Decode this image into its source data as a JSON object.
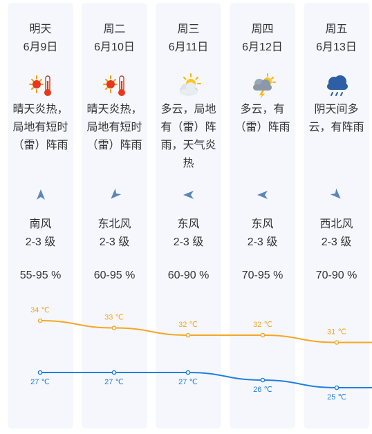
{
  "days": [
    {
      "weekday": "明天",
      "date": "6月9日",
      "icon": "sunny-hot-icon",
      "desc": "晴天炎热，局地有短时（雷）阵雨",
      "wind_dir": "南风",
      "wind_level": "2-3 级",
      "humidity": "55-95 %",
      "arrow_deg": 0
    },
    {
      "weekday": "周二",
      "date": "6月10日",
      "icon": "sunny-hot-icon",
      "desc": "晴天炎热，局地有短时（雷）阵雨",
      "wind_dir": "东北风",
      "wind_level": "2-3 级",
      "humidity": "60-95 %",
      "arrow_deg": 225
    },
    {
      "weekday": "周三",
      "date": "6月11日",
      "icon": "partly-cloudy-icon",
      "desc": "多云，局地有（雷）阵雨，天气炎热",
      "wind_dir": "东风",
      "wind_level": "2-3 级",
      "humidity": "60-90 %",
      "arrow_deg": 270
    },
    {
      "weekday": "周四",
      "date": "6月12日",
      "icon": "thunderstorm-icon",
      "desc": "多云，有（雷）阵雨",
      "wind_dir": "东风",
      "wind_level": "2-3 级",
      "humidity": "70-95 %",
      "arrow_deg": 270
    },
    {
      "weekday": "周五",
      "date": "6月13日",
      "icon": "cloudy-rain-icon",
      "desc": "阴天间多云，有阵雨",
      "wind_dir": "西北风",
      "wind_level": "2-3 级",
      "humidity": "70-90 %",
      "arrow_deg": 135
    }
  ],
  "chart_data": {
    "type": "line",
    "categories": [
      "6月9日",
      "6月10日",
      "6月11日",
      "6月12日",
      "6月13日"
    ],
    "series": [
      {
        "values": [
          34,
          33,
          32,
          32,
          31
        ],
        "labels": [
          "34 ℃",
          "33 ℃",
          "32 ℃",
          "32 ℃",
          "31 ℃"
        ],
        "color": "#f5a623"
      },
      {
        "values": [
          27,
          27,
          27,
          26,
          25
        ],
        "labels": [
          "27 ℃",
          "27 ℃",
          "27 ℃",
          "26 ℃",
          "25 ℃"
        ],
        "color": "#1e7fe0"
      }
    ],
    "ylim": [
      24,
      35
    ]
  },
  "colors": {
    "card_bg": "#f5f7fc",
    "arrow": "#5b86b8",
    "high": "#f5a623",
    "low": "#1e7fe0"
  }
}
